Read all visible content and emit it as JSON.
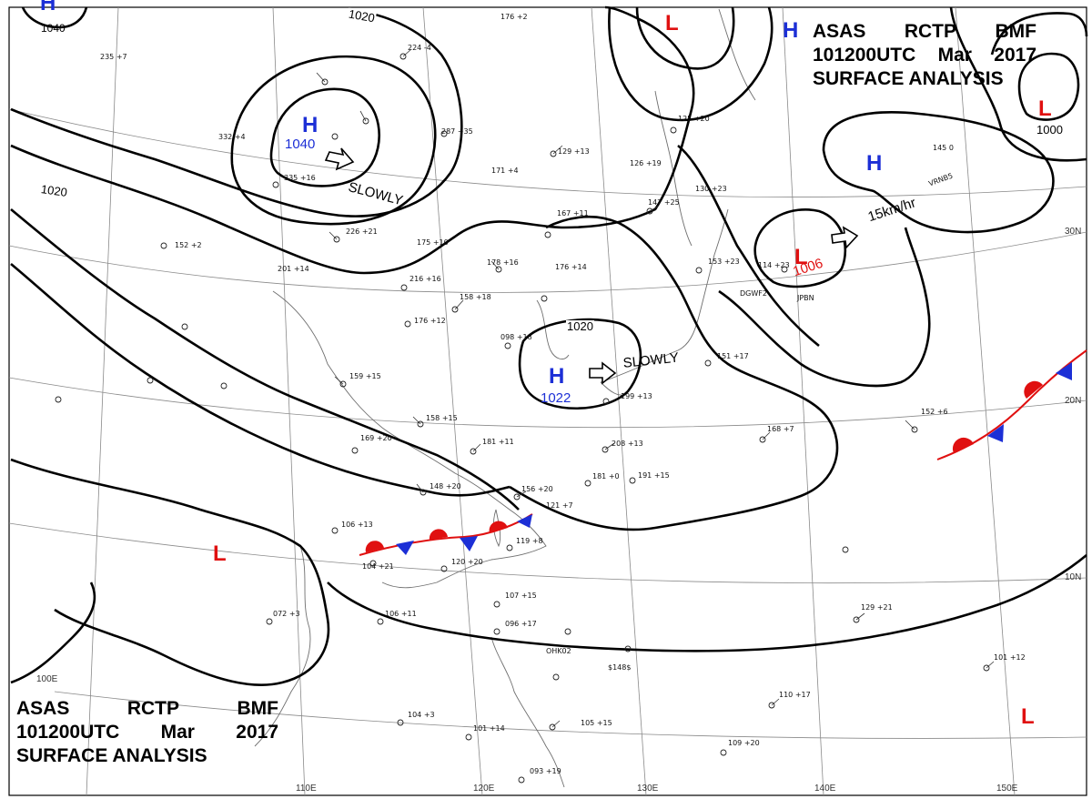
{
  "header_top": {
    "line1": [
      "ASAS",
      "RCTP",
      "BMF"
    ],
    "line2": [
      "101200UTC",
      "Mar",
      "2017"
    ],
    "line3": "SURFACE ANALYSIS"
  },
  "header_bottom": {
    "line1": [
      "ASAS",
      "RCTP",
      "BMF"
    ],
    "line2": [
      "101200UTC",
      "Mar",
      "2017"
    ],
    "line3": "SURFACE ANALYSIS"
  },
  "colors": {
    "high": "#1c2fd6",
    "low": "#e01010",
    "isobar": "#000000",
    "grid": "#8a8a8a",
    "coast": "#6e6e6e"
  },
  "pressure_centers": {
    "h_siberia": {
      "symbol": "H",
      "value": "1040"
    },
    "h_nw_corner": {
      "symbol": "H",
      "value": "1040"
    },
    "h_east_china_sea": {
      "symbol": "H",
      "value": "1022"
    },
    "h_pacific": {
      "symbol": "H"
    },
    "h_top_right": {
      "symbol": "H"
    },
    "l_north": {
      "symbol": "L"
    },
    "l_pacific": {
      "symbol": "L",
      "value": "1006"
    },
    "l_far_ne": {
      "symbol": "L"
    },
    "l_south_china": {
      "symbol": "L"
    },
    "l_se_corner": {
      "symbol": "L"
    }
  },
  "isobar_labels": [
    "1020",
    "1020",
    "1020",
    "1000"
  ],
  "movement": {
    "h_siberia": "SLOWLY",
    "h_east_china_sea": "SLOWLY",
    "l_pacific": "15km/hr"
  },
  "grid_labels": {
    "lat_30": "30N",
    "lat_20": "20N",
    "lat_10": "10N",
    "lon_100": "100E",
    "lon_110": "110E",
    "lon_120": "120E",
    "lon_130": "130E",
    "lon_140": "140E",
    "lon_150": "150E"
  },
  "station_samples": [
    "176 +2",
    "224 -4",
    "235 +7",
    "129 +13",
    "147 +25",
    "125 +20",
    "126 +19",
    "171 +4",
    "167 +11",
    "178 +16",
    "176 +14",
    "158 +18",
    "175 +10",
    "216 +16",
    "176 +12",
    "159 +15",
    "158 +15",
    "181 +11",
    "169 +20",
    "148 +20",
    "106 +13",
    "104 +21",
    "120 +20",
    "119 +8",
    "208 +13",
    "181 +0",
    "191 +15",
    "168 +7",
    "151 +17",
    "152 +6",
    "145 0",
    "129 +21",
    "101 +12",
    "110 +17",
    "109 +20",
    "105 +15",
    "104 +3",
    "107 +15",
    "096 +17",
    "121 +7",
    "156 +20",
    "072 +3",
    "106 +11",
    "152 +2",
    "332 +4",
    "335 +16",
    "226 +21",
    "201 +14",
    "153 +23",
    "114 +23",
    "199 +13",
    "098 +18",
    "093 +19",
    "101 +14",
    "130 +23",
    "287 +35"
  ],
  "station_ids": [
    "VRNB5",
    "DGWF2",
    "JPBN",
    "OHK02",
    "$148$"
  ]
}
